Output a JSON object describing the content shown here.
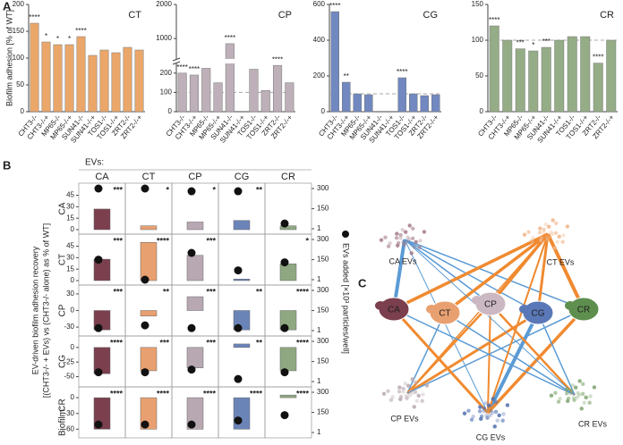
{
  "panel_labels": [
    "A",
    "B",
    "C"
  ],
  "panel_a_ylabel": "Biofilm adhesion [% of WT]",
  "chart_data": [
    {
      "type": "bar",
      "title": "CT",
      "color": "#eba76a",
      "categories": [
        "CHT3-/-",
        "CHT3-/-+",
        "MP65-/-",
        "MP65-/-+",
        "SUN41-/-",
        "SUN41-/-+",
        "TOS1-/-",
        "TOS1-/-+",
        "ZRT2-/-",
        "ZRT2-/-+"
      ],
      "values": [
        165,
        130,
        125,
        125,
        140,
        105,
        115,
        110,
        120,
        115
      ],
      "annotations": [
        "****",
        "*",
        "*",
        "*",
        "****",
        null,
        null,
        null,
        null,
        null
      ],
      "ylim": [
        0,
        200
      ],
      "yticks": [
        0,
        50,
        100,
        150,
        200
      ]
    },
    {
      "type": "bar",
      "title": "CP",
      "color": "#bdb0b8",
      "categories": [
        "CHT3-/-",
        "CHT3-/-+",
        "MP65-/-",
        "MP65-/-+",
        "SUN41-/-",
        "SUN41-/-+",
        "TOS1-/-",
        "TOS1-/-+",
        "ZRT2-/-",
        "ZRT2-/-+"
      ],
      "values": [
        200,
        190,
        225,
        150,
        850,
        null,
        220,
        110,
        240,
        150
      ],
      "annotations": [
        "****",
        "****",
        "****",
        null,
        "****",
        null,
        "****",
        null,
        "****",
        null
      ],
      "ylim": [
        0,
        2000
      ],
      "ybreak": [
        250,
        400
      ],
      "yticks": [
        0,
        100,
        200,
        1000,
        2000
      ],
      "refline": 100
    },
    {
      "type": "bar",
      "title": "CG",
      "color": "#7188c0",
      "categories": [
        "CHT3-/-",
        "CHT3-/-+",
        "MP65-/-",
        "MP65-/-+",
        "SUN41-/-",
        "SUN41-/-+",
        "TOS1-/-",
        "TOS1-/-+",
        "ZRT2-/-",
        "ZRT2-/-+"
      ],
      "values": [
        560,
        165,
        100,
        95,
        null,
        null,
        190,
        100,
        90,
        95
      ],
      "annotations": [
        "****",
        "**",
        null,
        null,
        null,
        null,
        "****",
        null,
        null,
        null
      ],
      "ylim": [
        0,
        600
      ],
      "yticks": [
        0,
        200,
        400,
        600
      ],
      "refline": 100
    },
    {
      "type": "bar",
      "title": "CR",
      "color": "#95ad87",
      "categories": [
        "CHT3-/-",
        "CHT3-/-+",
        "MP65-/-",
        "MP65-/-+",
        "SUN41-/-",
        "SUN41-/-+",
        "TOS1-/-",
        "TOS1-/-+",
        "ZRT2-/-",
        "ZRT2-/-+"
      ],
      "values": [
        120,
        100,
        88,
        85,
        90,
        100,
        105,
        105,
        68,
        100
      ],
      "annotations": [
        "****",
        null,
        "***",
        "*",
        "***",
        null,
        null,
        null,
        "****",
        null
      ],
      "ylim": [
        0,
        150
      ],
      "yticks": [
        0,
        50,
        100,
        150
      ],
      "refline": 100
    },
    {
      "type": "matrix",
      "header": "EVs:",
      "columns": [
        "CA",
        "CT",
        "CP",
        "CG",
        "CR"
      ],
      "colors": [
        "#7b3f4e",
        "#e8a070",
        "#b8a8b2",
        "#6b84b8",
        "#8fa882"
      ],
      "row_header": "Biofilm:",
      "ylabel": [
        "EV-driven biofilm adhesion recovery",
        "[(CHT3-/- + EVs) vs (CHT3-/- alone) as % of WT]"
      ],
      "y2label": "EVs added [×10³ particles/well]",
      "y2lim": [
        1,
        300
      ],
      "y2ticks": [
        1,
        150,
        300
      ],
      "rows": [
        {
          "name": "CA",
          "ylim": [
            0,
            55
          ],
          "yticks": [
            0,
            15,
            30,
            45
          ],
          "values": [
            27,
            5,
            10,
            12,
            5
          ],
          "dots": [
            300,
            300,
            280,
            280,
            40
          ],
          "annotations": [
            "***",
            "*",
            "*",
            "**",
            null
          ]
        },
        {
          "name": "CT",
          "ylim": [
            0,
            55
          ],
          "yticks": [
            0,
            15,
            30,
            45
          ],
          "values": [
            28,
            50,
            33,
            2,
            22
          ],
          "dots": [
            150,
            1,
            200,
            70,
            130
          ],
          "annotations": [
            "***",
            "****",
            "***",
            null,
            "*"
          ]
        },
        {
          "name": "CP",
          "ylim": [
            -38,
            38
          ],
          "yticks": [
            -30,
            0,
            30
          ],
          "values": [
            -35,
            -10,
            25,
            -35,
            -35
          ],
          "dots": [
            20,
            40,
            20,
            20,
            20
          ],
          "annotations": [
            "***",
            "**",
            "***",
            "**",
            "****"
          ]
        },
        {
          "name": "CG",
          "ylim": [
            -60,
            12
          ],
          "yticks": [
            -50,
            -25,
            0
          ],
          "values": [
            -45,
            -40,
            -35,
            6,
            -40
          ],
          "dots": [
            70,
            70,
            90,
            20,
            70
          ],
          "annotations": [
            "****",
            "***",
            "***",
            "**",
            "****"
          ]
        },
        {
          "name": "CR",
          "ylim": [
            -68,
            12
          ],
          "yticks": [
            -60,
            -30,
            0
          ],
          "values": [
            -60,
            -60,
            -60,
            -60,
            5
          ],
          "dots": [
            60,
            60,
            60,
            90,
            130
          ],
          "annotations": [
            "****",
            "****",
            "****",
            "****",
            "****"
          ]
        }
      ]
    }
  ],
  "diagram": {
    "cells": [
      "CA",
      "CT",
      "CP",
      "CG",
      "CR"
    ],
    "evs": [
      "CA EVs",
      "CT EVs",
      "CP EVs",
      "CG EVs",
      "CR EVs"
    ]
  }
}
